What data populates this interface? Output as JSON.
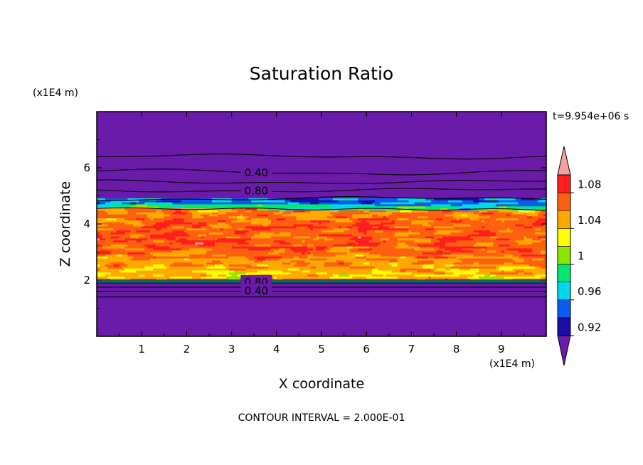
{
  "chart_data": {
    "type": "heatmap",
    "title": "Saturation Ratio",
    "xlabel": "X coordinate",
    "ylabel": "Z coordinate",
    "x_unit": "(x1E4 m)",
    "y_unit": "(x1E4 m)",
    "time_label": "t=9.954e+06 s",
    "footer": "CONTOUR INTERVAL = 2.000E-01",
    "xlim": [
      0,
      10
    ],
    "ylim": [
      0,
      8
    ],
    "x_ticks": [
      "1",
      "2",
      "3",
      "4",
      "5",
      "6",
      "7",
      "8",
      "9"
    ],
    "y_ticks": [
      "2",
      "4",
      "6"
    ],
    "contour_labels": [
      "0.40",
      "0.80",
      "0.80",
      "0.40"
    ],
    "colorbar": {
      "tick_labels": [
        "0.92",
        "0.96",
        "1",
        "1.04",
        "1.08"
      ],
      "levels": [
        0.92,
        0.94,
        0.96,
        0.98,
        1.0,
        1.02,
        1.04,
        1.06,
        1.08,
        1.1
      ],
      "colors": [
        "#6a1ba8",
        "#1a0da8",
        "#0b5bf0",
        "#00d8ee",
        "#00e870",
        "#8ae800",
        "#ffff00",
        "#ffa800",
        "#ff6010",
        "#ff1e1e",
        "#f8a0a0"
      ]
    }
  }
}
